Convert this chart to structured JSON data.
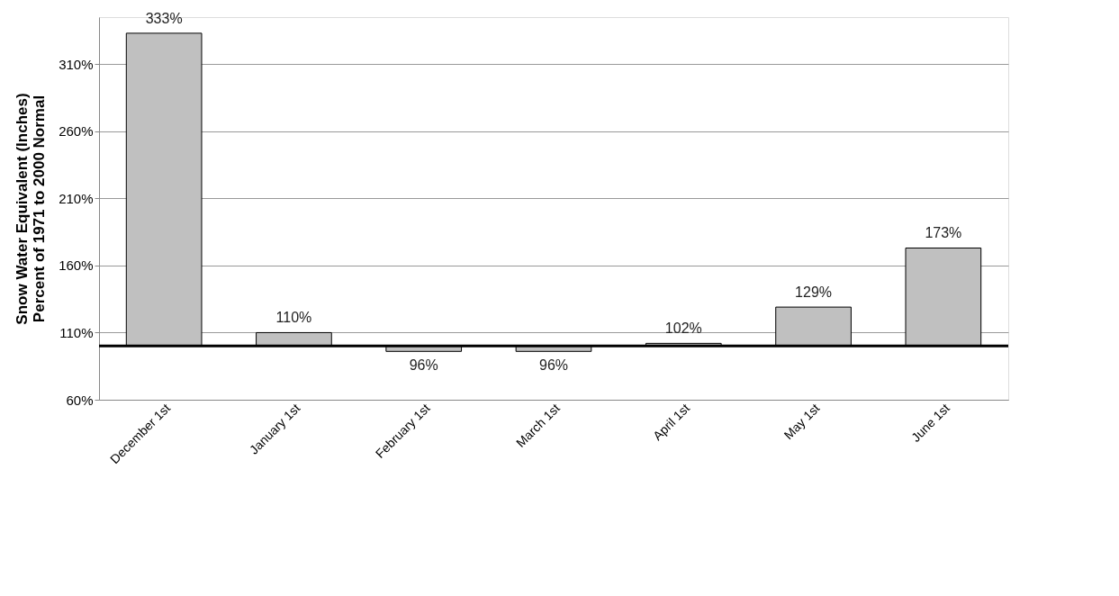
{
  "chart_data": {
    "type": "bar",
    "ylabel": "Snow Water Equivalent (Inches)\nPercent of 1971 to 2000 Normal",
    "categories": [
      "December 1st",
      "January 1st",
      "February 1st",
      "March 1st",
      "April 1st",
      "May 1st",
      "June 1st"
    ],
    "base": [
      100,
      100,
      100,
      100,
      100,
      100,
      100
    ],
    "values": [
      233,
      10,
      -4,
      -4,
      2,
      29,
      73
    ],
    "value_labels": [
      "333%",
      "110%",
      "96%",
      "96%",
      "102%",
      "129%",
      "173%"
    ],
    "color": "#c0c0c0",
    "ylim": [
      60,
      345
    ],
    "yticks": [
      {
        "value": 60,
        "label": "60%"
      },
      {
        "value": 110,
        "label": "110%"
      },
      {
        "value": 160,
        "label": "160%"
      },
      {
        "value": 210,
        "label": "210%"
      },
      {
        "value": 260,
        "label": "260%"
      },
      {
        "value": 310,
        "label": "310%"
      }
    ],
    "ref_lines": [
      {
        "axis": "y",
        "value": 100,
        "color": "#000000"
      }
    ],
    "grid": "y"
  }
}
